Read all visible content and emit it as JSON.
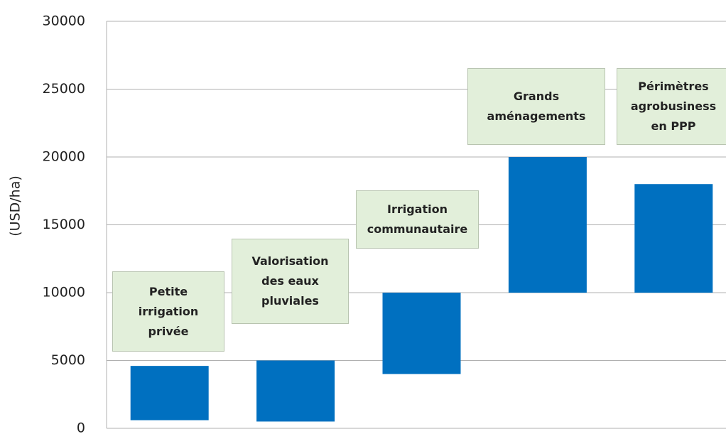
{
  "chart_data": {
    "type": "floating-bar",
    "ylabel": "(USD/ha)",
    "categories": [
      "Petite irrigation privée",
      "Valorisation des eaux pluviales",
      "Irrigation communautaire",
      "Grands aménagements",
      "Périmètres agrobusiness en PPP"
    ],
    "low": [
      600,
      500,
      4000,
      10000,
      10000
    ],
    "high": [
      4600,
      5000,
      10000,
      20000,
      18000
    ],
    "color": "#0070c0",
    "label_fill": "#e2efda",
    "ylim": [
      0,
      30000
    ],
    "yticks": [
      0,
      5000,
      10000,
      15000,
      20000,
      25000,
      30000
    ],
    "grid": true
  }
}
